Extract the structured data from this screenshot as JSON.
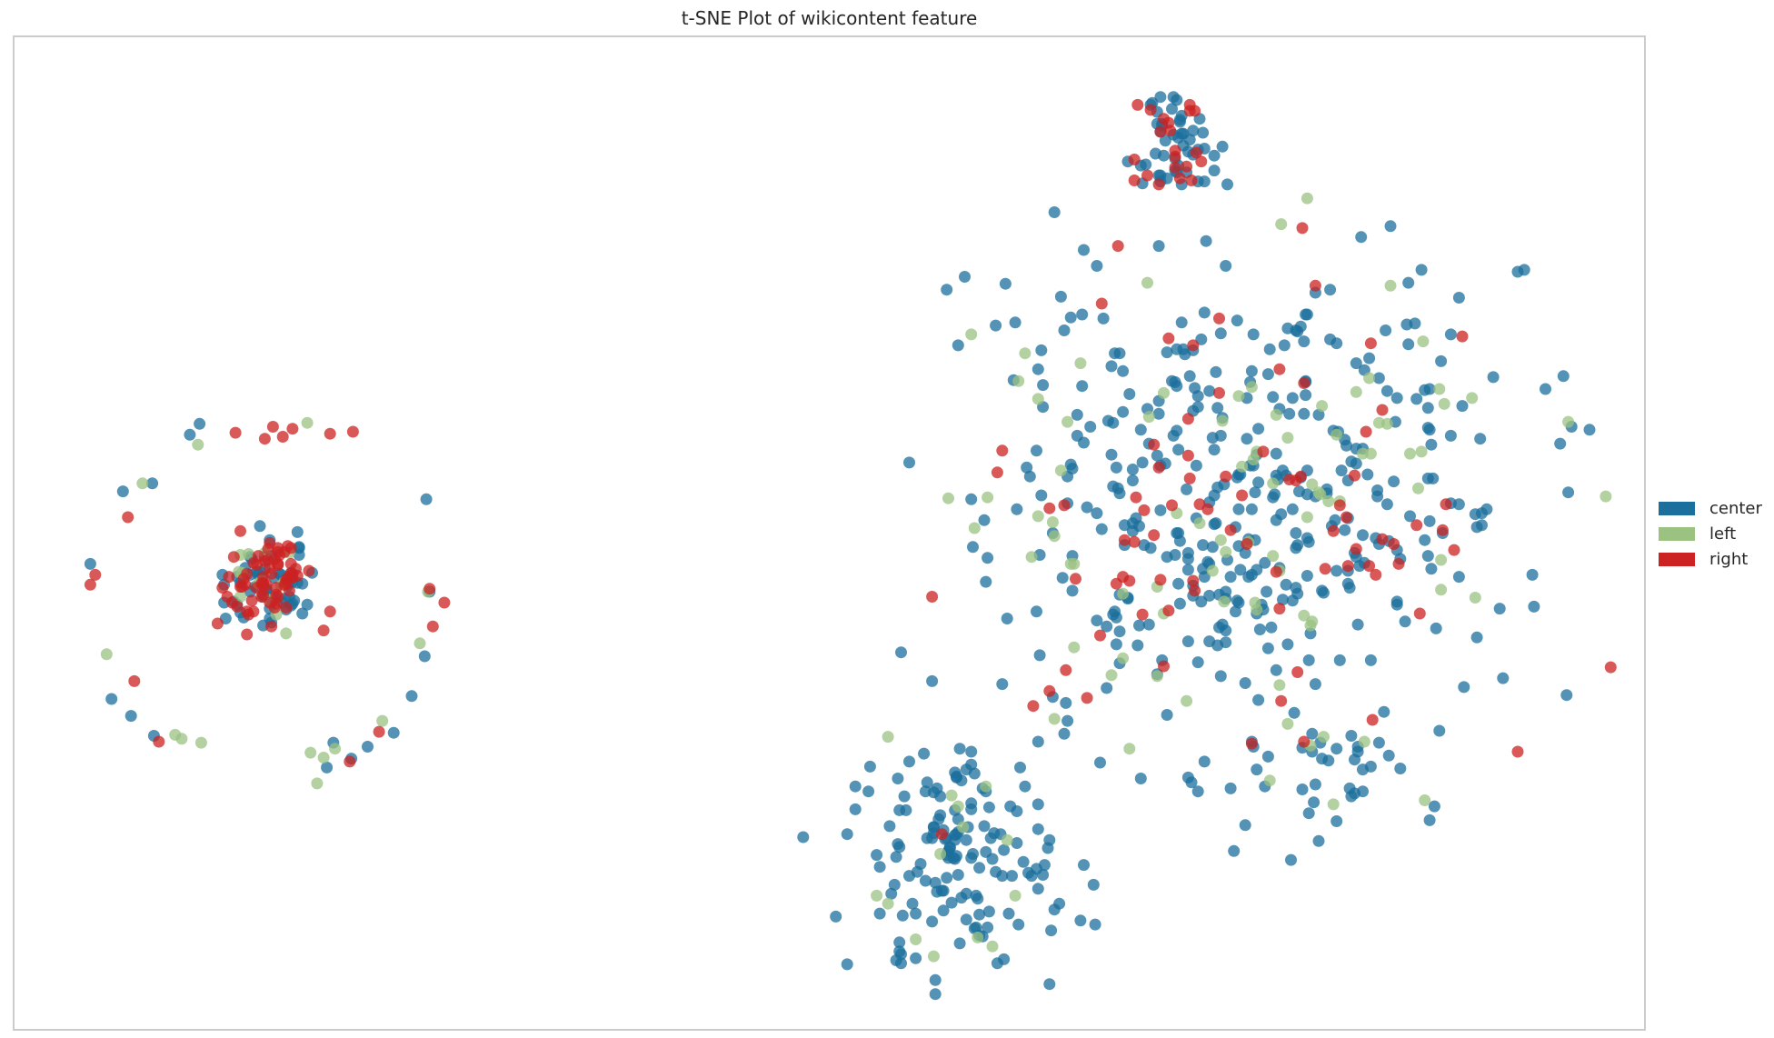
{
  "chart_data": {
    "type": "scatter",
    "title": "t-SNE Plot of wikicontent feature",
    "xlabel": "",
    "ylabel": "",
    "xlim": [
      0,
      100
    ],
    "ylim": [
      0,
      100
    ],
    "grid": false,
    "legend_position": "right",
    "series": [
      {
        "name": "center",
        "color": "#1b6f9c",
        "points": []
      },
      {
        "name": "left",
        "color": "#9bc281",
        "points": []
      },
      {
        "name": "right",
        "color": "#cc2222",
        "points": []
      }
    ]
  }
}
